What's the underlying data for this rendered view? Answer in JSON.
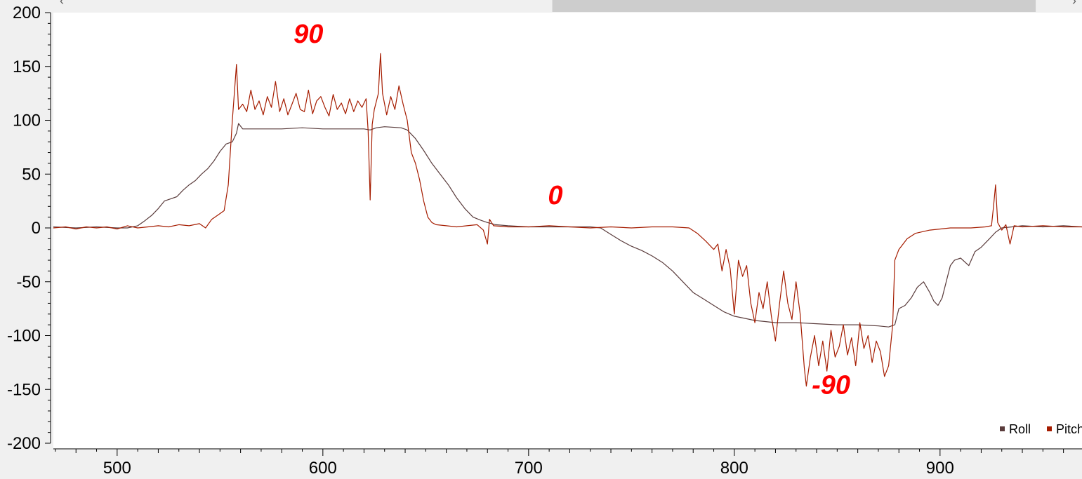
{
  "scrollbar": {
    "left_arrow": "‹",
    "right_arrow": "›",
    "thumb_start_fraction": 0.485,
    "thumb_end_fraction": 0.955
  },
  "colors": {
    "plot_bg": "#ffffff",
    "window_bg": "#f0f0f0",
    "axis": "#000000",
    "roll": "#5a3c3c",
    "pitch": "#a51c00",
    "annotation": "#ff0000"
  },
  "annotations": [
    {
      "text": "90",
      "x": 593,
      "y": 172
    },
    {
      "text": "0",
      "x": 713,
      "y": 22
    },
    {
      "text": "-90",
      "x": 847,
      "y": -154
    }
  ],
  "chart_data": {
    "type": "line",
    "title": "",
    "xlabel": "",
    "ylabel": "",
    "xlim": [
      469,
      969
    ],
    "ylim": [
      -200,
      200
    ],
    "xticks": [
      500,
      600,
      700,
      800,
      900
    ],
    "yticks": [
      200,
      150,
      100,
      50,
      0,
      -50,
      -100,
      -150,
      -200
    ],
    "grid": false,
    "legend_position": "bottom-right",
    "series": [
      {
        "name": "Roll",
        "color": "#5a3c3c",
        "points": [
          [
            469,
            1
          ],
          [
            480,
            0
          ],
          [
            490,
            1
          ],
          [
            500,
            0
          ],
          [
            505,
            0
          ],
          [
            510,
            2
          ],
          [
            513,
            6
          ],
          [
            517,
            12
          ],
          [
            520,
            18
          ],
          [
            523,
            25
          ],
          [
            526,
            27
          ],
          [
            529,
            29
          ],
          [
            532,
            35
          ],
          [
            535,
            40
          ],
          [
            538,
            44
          ],
          [
            541,
            50
          ],
          [
            544,
            55
          ],
          [
            547,
            62
          ],
          [
            550,
            71
          ],
          [
            553,
            78
          ],
          [
            556,
            80
          ],
          [
            558,
            88
          ],
          [
            559,
            97
          ],
          [
            561,
            92
          ],
          [
            570,
            92
          ],
          [
            580,
            92
          ],
          [
            590,
            93
          ],
          [
            600,
            92
          ],
          [
            610,
            92
          ],
          [
            620,
            92
          ],
          [
            623,
            91
          ],
          [
            626,
            93
          ],
          [
            630,
            94
          ],
          [
            638,
            93
          ],
          [
            641,
            91
          ],
          [
            645,
            83
          ],
          [
            649,
            72
          ],
          [
            653,
            60
          ],
          [
            657,
            50
          ],
          [
            661,
            40
          ],
          [
            665,
            28
          ],
          [
            669,
            18
          ],
          [
            673,
            10
          ],
          [
            677,
            7
          ],
          [
            680,
            5
          ],
          [
            684,
            3
          ],
          [
            690,
            2
          ],
          [
            700,
            1
          ],
          [
            710,
            1
          ],
          [
            720,
            1
          ],
          [
            730,
            1
          ],
          [
            735,
            0
          ],
          [
            740,
            -6
          ],
          [
            745,
            -12
          ],
          [
            750,
            -17
          ],
          [
            755,
            -21
          ],
          [
            760,
            -26
          ],
          [
            765,
            -32
          ],
          [
            770,
            -40
          ],
          [
            775,
            -50
          ],
          [
            780,
            -60
          ],
          [
            785,
            -66
          ],
          [
            790,
            -72
          ],
          [
            795,
            -78
          ],
          [
            800,
            -82
          ],
          [
            805,
            -84
          ],
          [
            810,
            -86
          ],
          [
            815,
            -87
          ],
          [
            820,
            -88
          ],
          [
            830,
            -88
          ],
          [
            840,
            -89
          ],
          [
            850,
            -90
          ],
          [
            860,
            -90
          ],
          [
            870,
            -91
          ],
          [
            875,
            -92
          ],
          [
            878,
            -90
          ],
          [
            880,
            -75
          ],
          [
            883,
            -72
          ],
          [
            886,
            -65
          ],
          [
            889,
            -55
          ],
          [
            892,
            -50
          ],
          [
            895,
            -60
          ],
          [
            897,
            -68
          ],
          [
            899,
            -72
          ],
          [
            901,
            -65
          ],
          [
            903,
            -50
          ],
          [
            905,
            -35
          ],
          [
            907,
            -30
          ],
          [
            910,
            -28
          ],
          [
            914,
            -35
          ],
          [
            917,
            -22
          ],
          [
            920,
            -18
          ],
          [
            924,
            -10
          ],
          [
            927,
            -4
          ],
          [
            930,
            0
          ],
          [
            935,
            1
          ],
          [
            940,
            2
          ],
          [
            950,
            1
          ],
          [
            960,
            2
          ],
          [
            969,
            1
          ]
        ]
      },
      {
        "name": "Pitch",
        "color": "#a51c00",
        "points": [
          [
            469,
            0
          ],
          [
            475,
            1
          ],
          [
            480,
            -1
          ],
          [
            485,
            1
          ],
          [
            490,
            0
          ],
          [
            495,
            1
          ],
          [
            500,
            -1
          ],
          [
            505,
            2
          ],
          [
            510,
            0
          ],
          [
            515,
            1
          ],
          [
            520,
            2
          ],
          [
            525,
            1
          ],
          [
            530,
            3
          ],
          [
            535,
            2
          ],
          [
            540,
            4
          ],
          [
            543,
            0
          ],
          [
            546,
            8
          ],
          [
            549,
            12
          ],
          [
            552,
            16
          ],
          [
            554,
            40
          ],
          [
            556,
            100
          ],
          [
            558,
            152
          ],
          [
            559,
            110
          ],
          [
            561,
            115
          ],
          [
            563,
            108
          ],
          [
            565,
            128
          ],
          [
            567,
            110
          ],
          [
            569,
            118
          ],
          [
            571,
            105
          ],
          [
            573,
            122
          ],
          [
            575,
            112
          ],
          [
            577,
            136
          ],
          [
            579,
            108
          ],
          [
            581,
            120
          ],
          [
            583,
            105
          ],
          [
            585,
            115
          ],
          [
            587,
            125
          ],
          [
            589,
            110
          ],
          [
            591,
            108
          ],
          [
            593,
            128
          ],
          [
            595,
            106
          ],
          [
            597,
            118
          ],
          [
            599,
            122
          ],
          [
            601,
            112
          ],
          [
            603,
            104
          ],
          [
            605,
            124
          ],
          [
            607,
            110
          ],
          [
            609,
            116
          ],
          [
            611,
            106
          ],
          [
            613,
            120
          ],
          [
            615,
            108
          ],
          [
            617,
            118
          ],
          [
            619,
            112
          ],
          [
            621,
            120
          ],
          [
            622,
            90
          ],
          [
            623,
            26
          ],
          [
            624,
            96
          ],
          [
            625,
            110
          ],
          [
            627,
            125
          ],
          [
            628,
            162
          ],
          [
            629,
            125
          ],
          [
            631,
            105
          ],
          [
            633,
            122
          ],
          [
            635,
            110
          ],
          [
            637,
            132
          ],
          [
            639,
            115
          ],
          [
            641,
            100
          ],
          [
            643,
            70
          ],
          [
            645,
            60
          ],
          [
            647,
            45
          ],
          [
            649,
            25
          ],
          [
            651,
            10
          ],
          [
            653,
            5
          ],
          [
            655,
            3
          ],
          [
            660,
            2
          ],
          [
            665,
            1
          ],
          [
            670,
            2
          ],
          [
            675,
            3
          ],
          [
            678,
            -2
          ],
          [
            680,
            -15
          ],
          [
            681,
            8
          ],
          [
            683,
            2
          ],
          [
            690,
            1
          ],
          [
            700,
            1
          ],
          [
            710,
            2
          ],
          [
            720,
            1
          ],
          [
            730,
            0
          ],
          [
            740,
            1
          ],
          [
            750,
            0
          ],
          [
            760,
            1
          ],
          [
            770,
            1
          ],
          [
            778,
            0
          ],
          [
            782,
            -5
          ],
          [
            786,
            -12
          ],
          [
            790,
            -20
          ],
          [
            792,
            -15
          ],
          [
            794,
            -40
          ],
          [
            796,
            -20
          ],
          [
            798,
            -38
          ],
          [
            800,
            -80
          ],
          [
            802,
            -30
          ],
          [
            804,
            -45
          ],
          [
            806,
            -35
          ],
          [
            808,
            -70
          ],
          [
            810,
            -88
          ],
          [
            812,
            -60
          ],
          [
            814,
            -75
          ],
          [
            816,
            -50
          ],
          [
            818,
            -82
          ],
          [
            820,
            -105
          ],
          [
            822,
            -70
          ],
          [
            824,
            -40
          ],
          [
            826,
            -70
          ],
          [
            828,
            -85
          ],
          [
            830,
            -50
          ],
          [
            832,
            -80
          ],
          [
            834,
            -130
          ],
          [
            835,
            -147
          ],
          [
            837,
            -120
          ],
          [
            839,
            -100
          ],
          [
            841,
            -128
          ],
          [
            843,
            -105
          ],
          [
            845,
            -133
          ],
          [
            847,
            -95
          ],
          [
            849,
            -120
          ],
          [
            851,
            -110
          ],
          [
            853,
            -90
          ],
          [
            855,
            -118
          ],
          [
            857,
            -102
          ],
          [
            859,
            -128
          ],
          [
            861,
            -88
          ],
          [
            863,
            -112
          ],
          [
            865,
            -100
          ],
          [
            867,
            -125
          ],
          [
            869,
            -105
          ],
          [
            871,
            -115
          ],
          [
            873,
            -138
          ],
          [
            875,
            -128
          ],
          [
            877,
            -90
          ],
          [
            878,
            -30
          ],
          [
            880,
            -20
          ],
          [
            884,
            -10
          ],
          [
            888,
            -5
          ],
          [
            895,
            -2
          ],
          [
            905,
            0
          ],
          [
            915,
            0
          ],
          [
            922,
            1
          ],
          [
            925,
            2
          ],
          [
            926,
            20
          ],
          [
            927,
            40
          ],
          [
            928,
            5
          ],
          [
            930,
            -2
          ],
          [
            932,
            3
          ],
          [
            934,
            -15
          ],
          [
            936,
            2
          ],
          [
            940,
            1
          ],
          [
            950,
            2
          ],
          [
            960,
            1
          ],
          [
            969,
            1
          ]
        ]
      }
    ]
  }
}
